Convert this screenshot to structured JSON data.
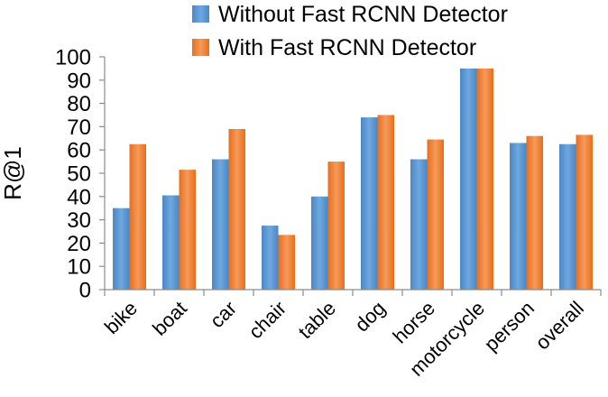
{
  "chart_data": {
    "type": "bar",
    "title": "",
    "xlabel": "",
    "ylabel": "R@1",
    "ylim": [
      0,
      100
    ],
    "yticks": [
      0,
      10,
      20,
      30,
      40,
      50,
      60,
      70,
      80,
      90,
      100
    ],
    "grid": false,
    "legend_position": "top",
    "categories": [
      "bike",
      "boat",
      "car",
      "chair",
      "table",
      "dog",
      "horse",
      "motorcycle",
      "person",
      "overall"
    ],
    "series": [
      {
        "name": "Without Fast RCNN Detector",
        "color": "#5b9bd5",
        "values": [
          35,
          40.5,
          56,
          27.5,
          40,
          74,
          56,
          95,
          63,
          62.5
        ]
      },
      {
        "name": "With Fast RCNN Detector",
        "color": "#ed7d31",
        "values": [
          62.5,
          51.5,
          69,
          23.5,
          55,
          75,
          64.5,
          95,
          66,
          66.5
        ]
      }
    ]
  }
}
